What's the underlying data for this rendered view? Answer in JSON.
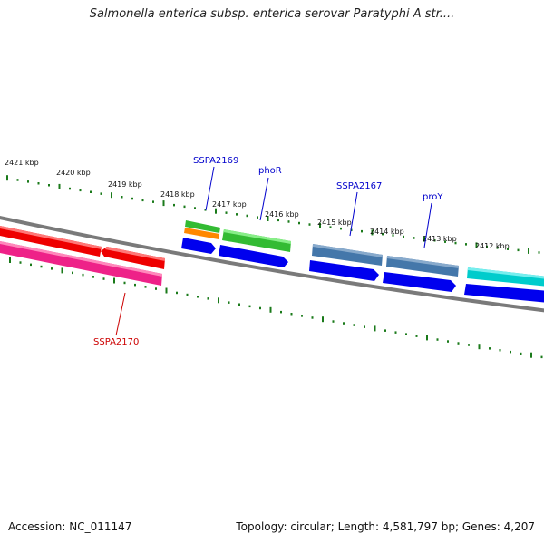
{
  "title": "Salmonella enterica subsp. enterica serovar Paratyphi A str....",
  "footer": {
    "accession": "Accession: NC_011147",
    "summary": "Topology: circular; Length: 4,581,797 bp; Genes: 4,207"
  },
  "scale_labels": [
    "2421 kbp",
    "2420 kbp",
    "2419 kbp",
    "2418 kbp",
    "2417 kbp",
    "2416 kbp",
    "2415 kbp",
    "2414 kbp",
    "2413 kbp",
    "2412 kbp"
  ],
  "gene_labels": [
    {
      "text": "SSPA2169",
      "color": "#0000cc"
    },
    {
      "text": "phoR",
      "color": "#0000cc"
    },
    {
      "text": "SSPA2167",
      "color": "#0000cc"
    },
    {
      "text": "proY",
      "color": "#0000cc"
    },
    {
      "text": "SSPA2170",
      "color": "#cc0000"
    }
  ],
  "colors": {
    "tick": "#1a7a1a",
    "backbone": "#808080",
    "red": "#ee0000",
    "pink": "#ee2288",
    "green": "#33bb33",
    "orange": "#ff8800",
    "blue": "#0000ee",
    "steel": "#4477aa",
    "cyan": "#00cccc"
  }
}
